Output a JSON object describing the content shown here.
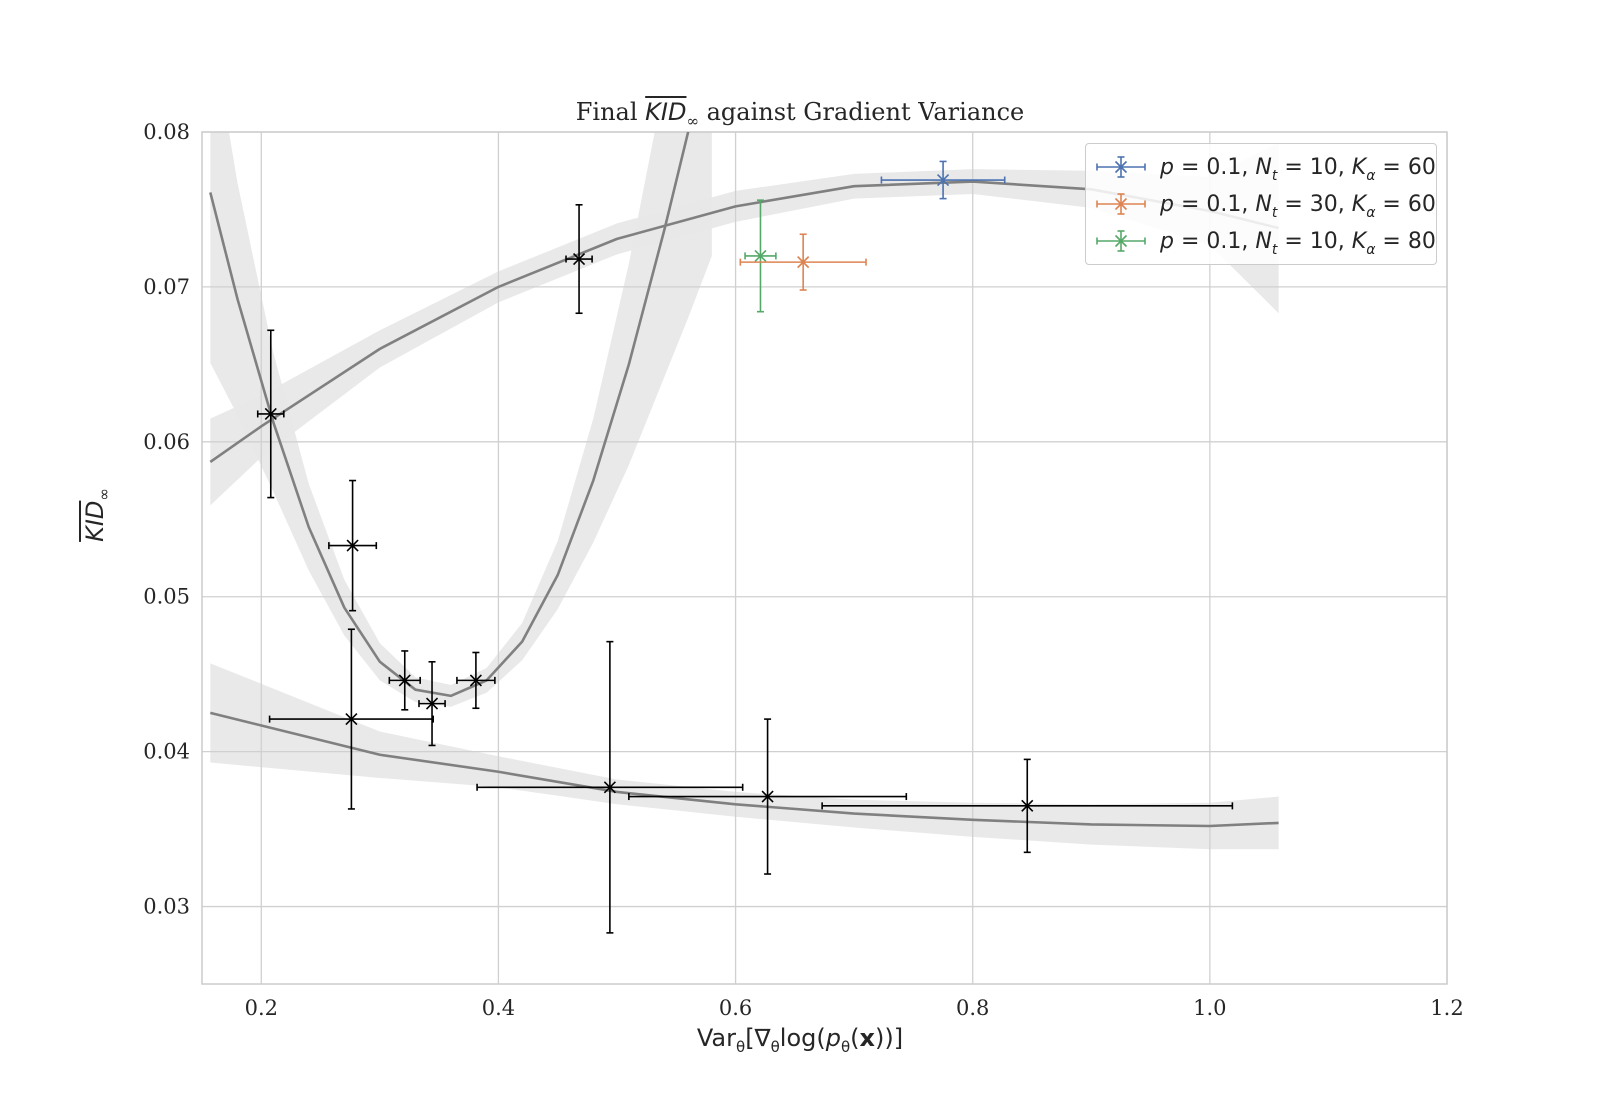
{
  "chart_data": {
    "type": "scatter",
    "title": "Final KID∞ against Gradient Variance",
    "title_parts": {
      "prefix": "Final ",
      "kid": "KID",
      "inf": "∞",
      "suffix": " against Gradient Variance"
    },
    "xlabel": "Var_θ[∇_θ log(p_θ(x))]",
    "xlabel_parts": {
      "var": "Var",
      "theta1": "θ",
      "grad": "[∇",
      "theta2": "θ",
      "log": "log(",
      "p": "p",
      "theta3": "θ",
      "x": "x",
      "close": "))]"
    },
    "ylabel": "KID∞",
    "ylabel_parts": {
      "kid": "KID",
      "inf": "∞"
    },
    "xlim": [
      0.15,
      1.2
    ],
    "ylim": [
      0.025,
      0.08
    ],
    "xticks": [
      "0.2",
      "0.4",
      "0.6",
      "0.8",
      "1.0",
      "1.2"
    ],
    "xtick_values": [
      0.2,
      0.4,
      0.6,
      0.8,
      1.0,
      1.2
    ],
    "yticks": [
      "0.03",
      "0.04",
      "0.05",
      "0.06",
      "0.07",
      "0.08"
    ],
    "ytick_values": [
      0.03,
      0.04,
      0.05,
      0.06,
      0.07,
      0.08
    ],
    "grid": true,
    "legend_position": "top-right",
    "colors": {
      "blue": "#4c72b0",
      "orange": "#dd8452",
      "green": "#55a868",
      "black": "#000000",
      "fit": "#808080",
      "band": "#e8e8e8",
      "grid": "#d0d0d0"
    },
    "series": [
      {
        "name": "p = 0.1, N_t = 10, K_α = 60",
        "label_parts": {
          "p": "p",
          "pval": " = 0.1, ",
          "n": "N",
          "nsub": "t",
          "nval": " = 10, ",
          "k": "K",
          "ksub": "α",
          "kval": " = 60"
        },
        "color": "#4c72b0",
        "points": [
          {
            "x": 0.775,
            "y": 0.0769,
            "xerr": 0.052,
            "yerr": 0.0012
          }
        ]
      },
      {
        "name": "p = 0.1, N_t = 30, K_α = 60",
        "label_parts": {
          "p": "p",
          "pval": " = 0.1, ",
          "n": "N",
          "nsub": "t",
          "nval": " = 30, ",
          "k": "K",
          "ksub": "α",
          "kval": " = 60"
        },
        "color": "#dd8452",
        "points": [
          {
            "x": 0.657,
            "y": 0.0716,
            "xerr": 0.053,
            "yerr": 0.0018
          }
        ]
      },
      {
        "name": "p = 0.1, N_t = 10, K_α = 80",
        "label_parts": {
          "p": "p",
          "pval": " = 0.1, ",
          "n": "N",
          "nsub": "t",
          "nval": " = 10, ",
          "k": "K",
          "ksub": "α",
          "kval": " = 80"
        },
        "color": "#55a868",
        "points": [
          {
            "x": 0.621,
            "y": 0.072,
            "xerr": 0.013,
            "yerr": 0.0036
          }
        ]
      },
      {
        "name": "",
        "color": "#000000",
        "points": [
          {
            "x": 0.208,
            "y": 0.0618,
            "xerr": 0.011,
            "yerr": 0.0054
          },
          {
            "x": 0.277,
            "y": 0.0533,
            "xerr": 0.02,
            "yerr": 0.0042
          },
          {
            "x": 0.321,
            "y": 0.0446,
            "xerr": 0.013,
            "yerr": 0.0019
          },
          {
            "x": 0.344,
            "y": 0.0431,
            "xerr": 0.011,
            "yerr": 0.0027
          },
          {
            "x": 0.381,
            "y": 0.0446,
            "xerr": 0.016,
            "yerr": 0.0018
          },
          {
            "x": 0.276,
            "y": 0.0421,
            "xerr": 0.069,
            "yerr": 0.0058
          },
          {
            "x": 0.468,
            "y": 0.0718,
            "xerr": 0.011,
            "yerr": 0.0035
          },
          {
            "x": 0.494,
            "y": 0.0377,
            "xerr": 0.112,
            "yerr": 0.0094
          },
          {
            "x": 0.627,
            "y": 0.0371,
            "xerr": 0.117,
            "yerr": 0.005
          },
          {
            "x": 0.846,
            "y": 0.0365,
            "xerr": 0.173,
            "yerr": 0.003
          }
        ]
      }
    ],
    "fits": [
      {
        "points": [
          {
            "x": 0.157,
            "y": 0.0587,
            "band": 0.0028
          },
          {
            "x": 0.2,
            "y": 0.061,
            "band": 0.002
          },
          {
            "x": 0.3,
            "y": 0.066,
            "band": 0.0012
          },
          {
            "x": 0.4,
            "y": 0.07,
            "band": 0.001
          },
          {
            "x": 0.5,
            "y": 0.0731,
            "band": 0.001
          },
          {
            "x": 0.6,
            "y": 0.0752,
            "band": 0.001
          },
          {
            "x": 0.7,
            "y": 0.0765,
            "band": 0.0008
          },
          {
            "x": 0.8,
            "y": 0.0768,
            "band": 0.0008
          },
          {
            "x": 0.9,
            "y": 0.0763,
            "band": 0.0012
          },
          {
            "x": 1.0,
            "y": 0.0749,
            "band": 0.0022
          },
          {
            "x": 1.058,
            "y": 0.0738,
            "band": 0.0055
          }
        ]
      },
      {
        "points": [
          {
            "x": 0.157,
            "y": 0.0761,
            "band": 0.011
          },
          {
            "x": 0.18,
            "y": 0.0692,
            "band": 0.0075
          },
          {
            "x": 0.21,
            "y": 0.0613,
            "band": 0.0045
          },
          {
            "x": 0.24,
            "y": 0.0545,
            "band": 0.0028
          },
          {
            "x": 0.27,
            "y": 0.0493,
            "band": 0.0018
          },
          {
            "x": 0.3,
            "y": 0.0458,
            "band": 0.0012
          },
          {
            "x": 0.33,
            "y": 0.044,
            "band": 0.0008
          },
          {
            "x": 0.36,
            "y": 0.0436,
            "band": 0.0007
          },
          {
            "x": 0.39,
            "y": 0.0446,
            "band": 0.0008
          },
          {
            "x": 0.42,
            "y": 0.0471,
            "band": 0.0012
          },
          {
            "x": 0.45,
            "y": 0.0514,
            "band": 0.0022
          },
          {
            "x": 0.48,
            "y": 0.0575,
            "band": 0.004
          },
          {
            "x": 0.51,
            "y": 0.065,
            "band": 0.0065
          },
          {
            "x": 0.54,
            "y": 0.0737,
            "band": 0.0095
          },
          {
            "x": 0.56,
            "y": 0.08,
            "band": 0.012
          },
          {
            "x": 0.58,
            "y": 0.087,
            "band": 0.015
          }
        ]
      },
      {
        "points": [
          {
            "x": 0.157,
            "y": 0.0425,
            "band": 0.0032
          },
          {
            "x": 0.3,
            "y": 0.0398,
            "band": 0.0015
          },
          {
            "x": 0.4,
            "y": 0.0387,
            "band": 0.001
          },
          {
            "x": 0.5,
            "y": 0.0374,
            "band": 0.0008
          },
          {
            "x": 0.6,
            "y": 0.0366,
            "band": 0.0008
          },
          {
            "x": 0.7,
            "y": 0.036,
            "band": 0.0009
          },
          {
            "x": 0.8,
            "y": 0.0356,
            "band": 0.0011
          },
          {
            "x": 0.9,
            "y": 0.0353,
            "band": 0.0013
          },
          {
            "x": 1.0,
            "y": 0.0352,
            "band": 0.0015
          },
          {
            "x": 1.058,
            "y": 0.0354,
            "band": 0.0017
          }
        ]
      }
    ]
  }
}
